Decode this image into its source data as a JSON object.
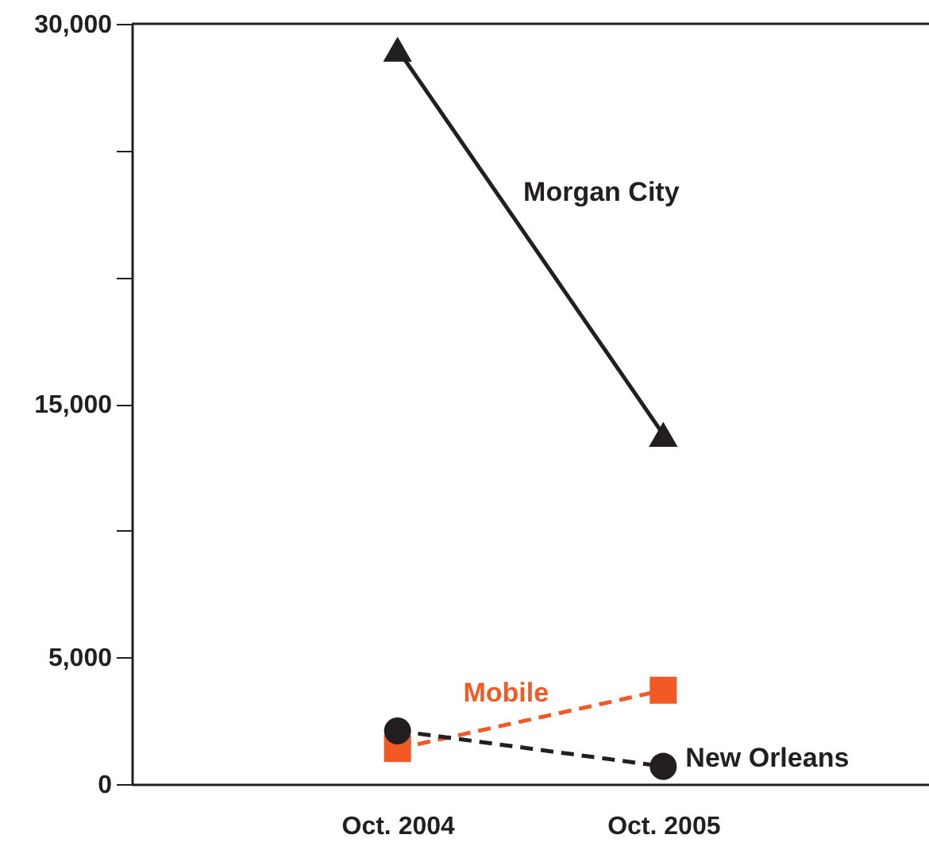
{
  "chart_data": {
    "type": "line",
    "categories": [
      "Oct. 2004",
      "Oct. 2005"
    ],
    "series": [
      {
        "name": "Morgan City",
        "color": "#231f20",
        "values": [
          29000,
          13800
        ],
        "marker": "triangle",
        "line_style": "solid"
      },
      {
        "name": "Mobile",
        "color": "#f15a24",
        "values": [
          1400,
          3700
        ],
        "marker": "square",
        "line_style": "dashed"
      },
      {
        "name": "New Orleans",
        "color": "#231f20",
        "values": [
          2100,
          700
        ],
        "marker": "circle",
        "line_style": "dashed"
      }
    ],
    "ylim": [
      0,
      30000
    ],
    "yticks": [
      0,
      {
        "value": 5000,
        "label": "5,000"
      },
      {
        "value": 10000,
        "label": null
      },
      {
        "value": 15000,
        "label": "15,000"
      },
      {
        "value": 20000,
        "label": null
      },
      {
        "value": 25000,
        "label": null
      },
      {
        "value": 30000,
        "label": "30,000"
      }
    ]
  }
}
